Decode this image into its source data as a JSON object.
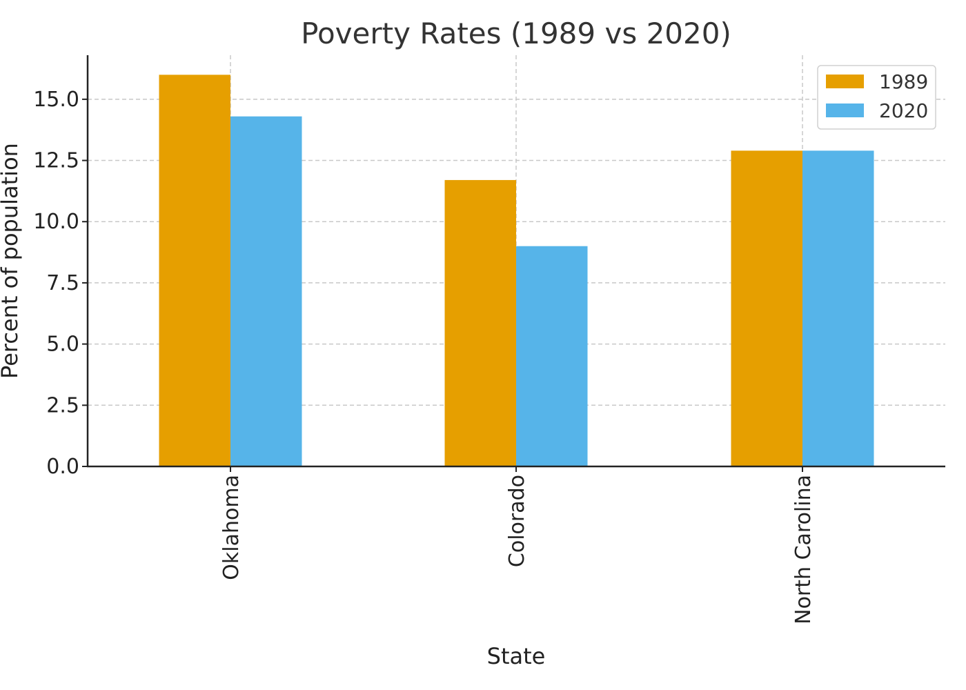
{
  "chart_data": {
    "type": "bar",
    "title": "Poverty Rates (1989 vs 2020)",
    "xlabel": "State",
    "ylabel": "Percent of population",
    "categories": [
      "Oklahoma",
      "Colorado",
      "North Carolina"
    ],
    "series": [
      {
        "name": "1989",
        "values": [
          16.0,
          11.7,
          12.9
        ],
        "color": "#E69F00"
      },
      {
        "name": "2020",
        "values": [
          14.3,
          9.0,
          12.9
        ],
        "color": "#56B4E9"
      }
    ],
    "ylim": [
      0,
      16.8
    ],
    "yticks": [
      "0.0",
      "2.5",
      "5.0",
      "7.5",
      "10.0",
      "12.5",
      "15.0"
    ],
    "grid": true,
    "legend_position": "top-right"
  }
}
